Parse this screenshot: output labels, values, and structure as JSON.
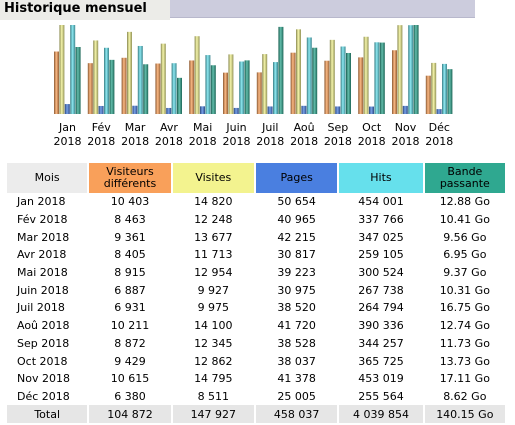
{
  "header": {
    "title": "Historique mensuel"
  },
  "colors": {
    "visiteurs": "#f9a05a",
    "visites": "#f3f38f",
    "pages": "#4a7fe0",
    "hits": "#66e0ec",
    "bande": "#2fa890"
  },
  "table": {
    "headers": [
      "Mois",
      "Visiteurs différents",
      "Visites",
      "Pages",
      "Hits",
      "Bande passante"
    ],
    "rows": [
      {
        "mois": "Jan 2018",
        "visiteurs": "10 403",
        "visites": "14 820",
        "pages": "50 654",
        "hits": "454 001",
        "bande": "12.88 Go"
      },
      {
        "mois": "Fév 2018",
        "visiteurs": "8 463",
        "visites": "12 248",
        "pages": "40 965",
        "hits": "337 766",
        "bande": "10.41 Go"
      },
      {
        "mois": "Mar 2018",
        "visiteurs": "9 361",
        "visites": "13 677",
        "pages": "42 215",
        "hits": "347 025",
        "bande": "9.56 Go"
      },
      {
        "mois": "Avr 2018",
        "visiteurs": "8 405",
        "visites": "11 713",
        "pages": "30 817",
        "hits": "259 105",
        "bande": "6.95 Go"
      },
      {
        "mois": "Mai 2018",
        "visiteurs": "8 915",
        "visites": "12 954",
        "pages": "39 223",
        "hits": "300 524",
        "bande": "9.37 Go"
      },
      {
        "mois": "Juin 2018",
        "visiteurs": "6 887",
        "visites": "9 927",
        "pages": "30 975",
        "hits": "267 738",
        "bande": "10.31 Go"
      },
      {
        "mois": "Juil 2018",
        "visiteurs": "6 931",
        "visites": "9 975",
        "pages": "38 520",
        "hits": "264 794",
        "bande": "16.75 Go"
      },
      {
        "mois": "Aoû 2018",
        "visiteurs": "10 211",
        "visites": "14 100",
        "pages": "41 720",
        "hits": "390 336",
        "bande": "12.74 Go"
      },
      {
        "mois": "Sep 2018",
        "visiteurs": "8 872",
        "visites": "12 345",
        "pages": "38 528",
        "hits": "344 257",
        "bande": "11.73 Go"
      },
      {
        "mois": "Oct 2018",
        "visiteurs": "9 429",
        "visites": "12 862",
        "pages": "38 037",
        "hits": "365 725",
        "bande": "13.73 Go"
      },
      {
        "mois": "Nov 2018",
        "visiteurs": "10 615",
        "visites": "14 795",
        "pages": "41 378",
        "hits": "453 019",
        "bande": "17.11 Go"
      },
      {
        "mois": "Déc 2018",
        "visiteurs": "6 380",
        "visites": "8 511",
        "pages": "25 005",
        "hits": "255 564",
        "bande": "8.62 Go"
      }
    ],
    "total": {
      "label": "Total",
      "visiteurs": "104 872",
      "visites": "147 927",
      "pages": "458 037",
      "hits": "4 039 854",
      "bande": "140.15 Go"
    }
  },
  "chart_data": {
    "type": "bar",
    "categories": [
      "Jan",
      "Fév",
      "Mar",
      "Avr",
      "Mai",
      "Juin",
      "Juil",
      "Aoû",
      "Sep",
      "Oct",
      "Nov",
      "Déc"
    ],
    "category_year": "2018",
    "series": [
      {
        "key": "visiteurs",
        "values": [
          10403,
          8463,
          9361,
          8405,
          8915,
          6887,
          6931,
          10211,
          8872,
          9429,
          10615,
          6380
        ]
      },
      {
        "key": "visites",
        "values": [
          14820,
          12248,
          13677,
          11713,
          12954,
          9927,
          9975,
          14100,
          12345,
          12862,
          14795,
          8511
        ]
      },
      {
        "key": "pages",
        "values": [
          50654,
          40965,
          42215,
          30817,
          39223,
          30975,
          38520,
          41720,
          38528,
          38037,
          41378,
          25005
        ]
      },
      {
        "key": "hits",
        "values": [
          454001,
          337766,
          347025,
          259105,
          300524,
          267738,
          264794,
          390336,
          344257,
          365725,
          453019,
          255564
        ]
      },
      {
        "key": "bande",
        "values": [
          12.88,
          10.41,
          9.56,
          6.95,
          9.37,
          10.31,
          16.75,
          12.74,
          11.73,
          13.73,
          17.11,
          8.62
        ]
      }
    ],
    "scale_groups": [
      [
        "visiteurs",
        "visites"
      ],
      [
        "pages",
        "hits"
      ],
      [
        "bande"
      ]
    ],
    "grid": false,
    "legend": "none"
  }
}
